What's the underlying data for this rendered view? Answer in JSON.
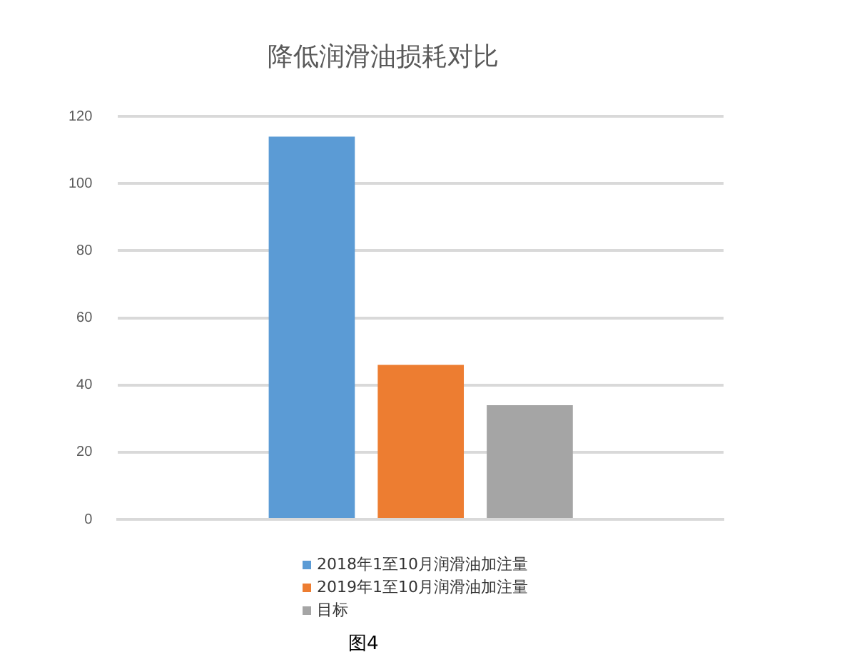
{
  "chart_data": {
    "type": "bar",
    "title": "降低润滑油损耗对比",
    "categories": [
      null
    ],
    "series": [
      {
        "name": "2018年1至10月润滑油加注量",
        "color": "#5b9bd5",
        "values": [
          114
        ]
      },
      {
        "name": "2019年1至10月润滑油加注量",
        "color": "#ed7d31",
        "values": [
          46
        ]
      },
      {
        "name": "目标",
        "color": "#a5a5a5",
        "values": [
          34
        ]
      }
    ],
    "ylim": [
      0,
      120
    ],
    "yticks": [
      0,
      20,
      40,
      60,
      80,
      100,
      120
    ],
    "grid": "y",
    "legend": "bottom",
    "annotations": [
      "图4"
    ]
  }
}
